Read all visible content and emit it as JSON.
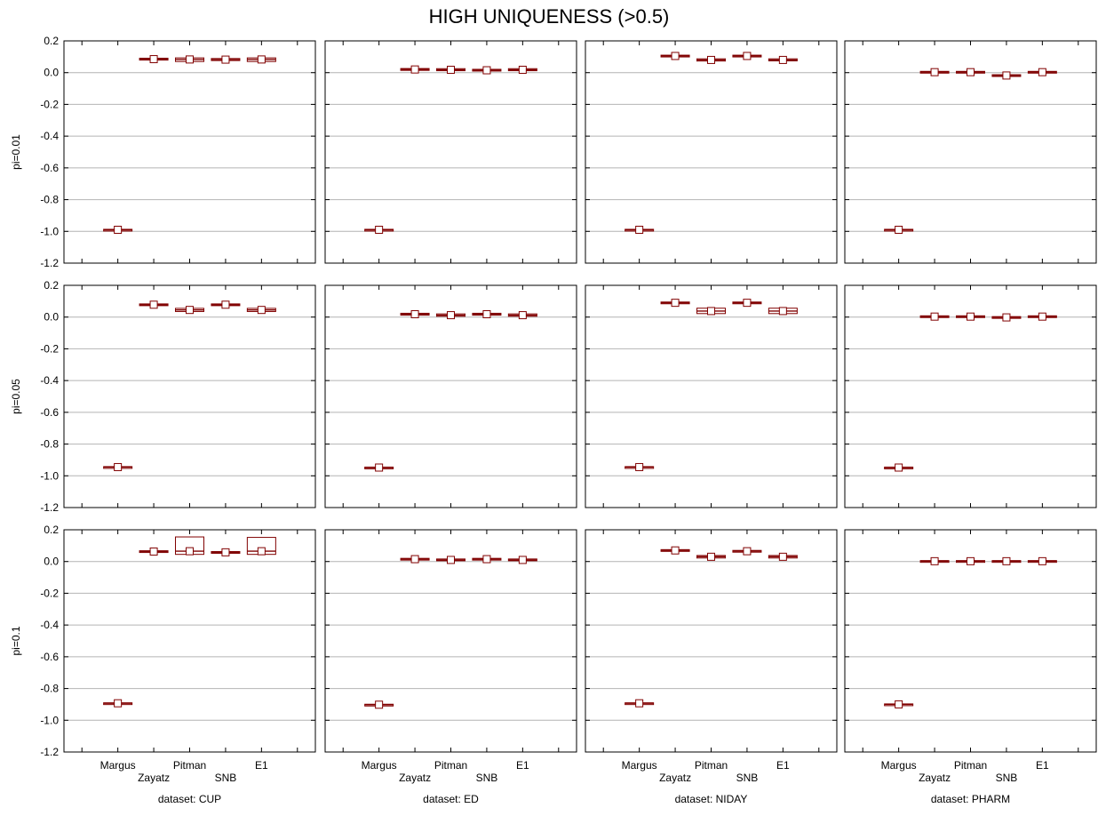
{
  "chart_data": {
    "type": "box",
    "title": "HIGH UNIQUENESS (>0.5)",
    "methods": [
      "Margus",
      "Zayatz",
      "Pitman",
      "SNB",
      "E1"
    ],
    "datasets": [
      {
        "label": "dataset: CUP"
      },
      {
        "label": "dataset: ED"
      },
      {
        "label": "dataset: NIDAY"
      },
      {
        "label": "dataset: PHARM"
      }
    ],
    "rows": [
      {
        "label": "pi=0.01"
      },
      {
        "label": "pi=0.05"
      },
      {
        "label": "pi=0.1"
      }
    ],
    "ylim": [
      -1.2,
      0.2
    ],
    "yticks": [
      "0.2",
      "0.0",
      "-0.2",
      "-0.4",
      "-0.6",
      "-0.8",
      "-1.0",
      "-1.2"
    ],
    "grid": true,
    "colors": {
      "box": "#800000",
      "marker_fill": "#ffffff",
      "grid": "#b4b4b4",
      "frame": "#000000"
    },
    "panels": [
      [
        [
          [
            -0.99,
            -0.993,
            -0.987
          ],
          [
            0.085,
            0.079,
            0.091
          ],
          [
            0.083,
            0.07,
            0.093
          ],
          [
            0.082,
            0.076,
            0.089
          ],
          [
            0.083,
            0.07,
            0.093
          ]
        ],
        [
          [
            -0.99,
            -0.993,
            -0.987
          ],
          [
            0.02,
            0.014,
            0.026
          ],
          [
            0.018,
            0.012,
            0.025
          ],
          [
            0.015,
            0.01,
            0.021
          ],
          [
            0.018,
            0.012,
            0.025
          ]
        ],
        [
          [
            -0.99,
            -0.993,
            -0.987
          ],
          [
            0.105,
            0.1,
            0.11
          ],
          [
            0.08,
            0.073,
            0.087
          ],
          [
            0.105,
            0.1,
            0.11
          ],
          [
            0.08,
            0.074,
            0.087
          ]
        ],
        [
          [
            -0.99,
            -0.993,
            -0.987
          ],
          [
            0.003,
            -0.002,
            0.008
          ],
          [
            0.003,
            -0.002,
            0.008
          ],
          [
            -0.018,
            -0.023,
            -0.013
          ],
          [
            0.003,
            -0.002,
            0.008
          ]
        ]
      ],
      [
        [
          [
            -0.945,
            -0.948,
            -0.942
          ],
          [
            0.078,
            0.073,
            0.083
          ],
          [
            0.045,
            0.035,
            0.055
          ],
          [
            0.078,
            0.073,
            0.083
          ],
          [
            0.045,
            0.035,
            0.055
          ]
        ],
        [
          [
            -0.948,
            -0.951,
            -0.945
          ],
          [
            0.018,
            0.012,
            0.024
          ],
          [
            0.012,
            0.005,
            0.02
          ],
          [
            0.018,
            0.012,
            0.024
          ],
          [
            0.012,
            0.005,
            0.02
          ]
        ],
        [
          [
            -0.945,
            -0.948,
            -0.942
          ],
          [
            0.09,
            0.085,
            0.095
          ],
          [
            0.038,
            0.022,
            0.056
          ],
          [
            0.09,
            0.085,
            0.095
          ],
          [
            0.038,
            0.022,
            0.056
          ]
        ],
        [
          [
            -0.948,
            -0.951,
            -0.945
          ],
          [
            0.003,
            -0.002,
            0.008
          ],
          [
            0.003,
            -0.002,
            0.008
          ],
          [
            -0.002,
            -0.007,
            0.003
          ],
          [
            0.003,
            -0.002,
            0.008
          ]
        ]
      ],
      [
        [
          [
            -0.893,
            -0.896,
            -0.89
          ],
          [
            0.063,
            0.058,
            0.068
          ],
          [
            0.065,
            0.045,
            0.155
          ],
          [
            0.058,
            0.053,
            0.063
          ],
          [
            0.065,
            0.045,
            0.152
          ]
        ],
        [
          [
            -0.902,
            -0.905,
            -0.899
          ],
          [
            0.015,
            0.01,
            0.02
          ],
          [
            0.01,
            0.005,
            0.016
          ],
          [
            0.015,
            0.01,
            0.02
          ],
          [
            0.01,
            0.005,
            0.016
          ]
        ],
        [
          [
            -0.893,
            -0.896,
            -0.89
          ],
          [
            0.07,
            0.065,
            0.075
          ],
          [
            0.03,
            0.022,
            0.038
          ],
          [
            0.065,
            0.06,
            0.07
          ],
          [
            0.03,
            0.022,
            0.038
          ]
        ],
        [
          [
            -0.9,
            -0.903,
            -0.897
          ],
          [
            0.002,
            -0.002,
            0.006
          ],
          [
            0.002,
            -0.002,
            0.006
          ],
          [
            0.002,
            -0.002,
            0.006
          ],
          [
            0.002,
            -0.002,
            0.006
          ]
        ]
      ]
    ]
  }
}
